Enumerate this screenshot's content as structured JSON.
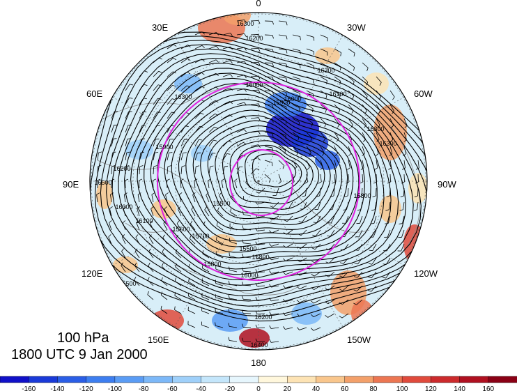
{
  "map": {
    "projection": "north polar stereographic",
    "longitude_labels": {
      "top": "0",
      "bottom": "180",
      "left": "90E",
      "right": "90W",
      "upper_left_1": "30E",
      "upper_left_2": "60E",
      "lower_left_1": "120E",
      "lower_left_2": "150E",
      "upper_right_1": "30W",
      "upper_right_2": "60W",
      "lower_right_1": "120W",
      "lower_right_2": "150W"
    },
    "contour_labels": [
      "16300",
      "16200",
      "16100",
      "16000",
      "15900",
      "15800",
      "15700",
      "15600",
      "15500",
      "16400",
      "16500"
    ],
    "colors": {
      "contour": "#000000",
      "highlight_contour": "#e020e0",
      "coast": "#8a8a8a",
      "border": "#000000"
    }
  },
  "caption": {
    "level": "100 hPa",
    "time": "1800 UTC 9 Jan 2000"
  },
  "colorbar": {
    "labels": [
      "-160",
      "-140",
      "-120",
      "-100",
      "-80",
      "-60",
      "-40",
      "-20",
      "0",
      "20",
      "40",
      "60",
      "80",
      "100",
      "120",
      "140",
      "160"
    ],
    "colors": [
      "#1010c8",
      "#1a3ad8",
      "#2a5ee6",
      "#3d7ef0",
      "#5a9cf5",
      "#7cb8f8",
      "#9fd0fa",
      "#c4e6fb",
      "#e6f6fd",
      "#fff7dc",
      "#fde3b4",
      "#f9c68c",
      "#f3a06a",
      "#ec7652",
      "#e04a3c",
      "#cc2a2c",
      "#b01020",
      "#8a0015"
    ]
  }
}
